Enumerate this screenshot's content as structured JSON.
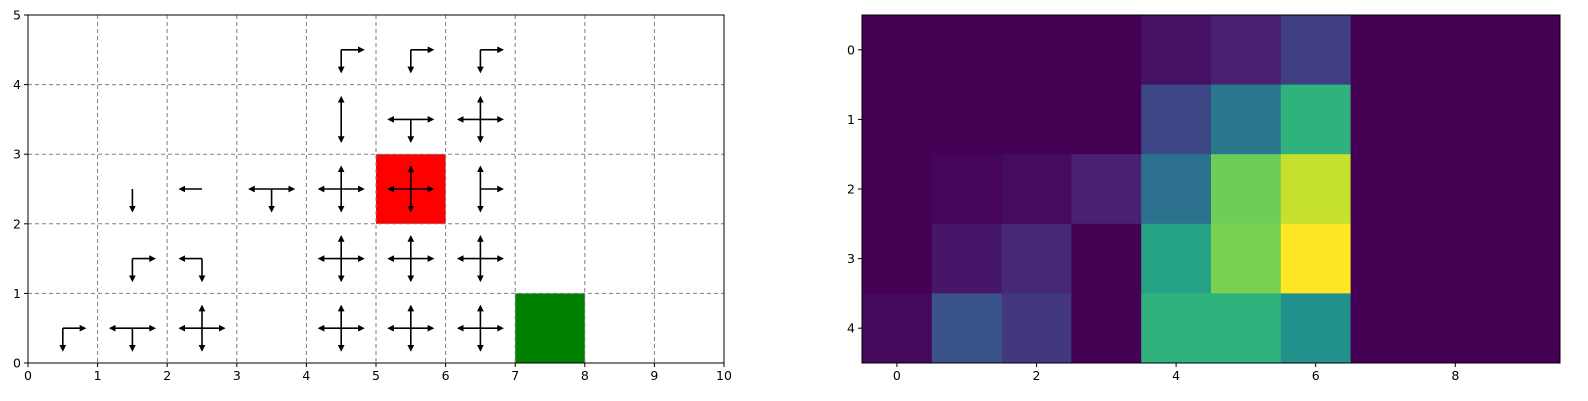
{
  "chart_data": [
    {
      "type": "quiver-grid",
      "xlim": [
        0,
        10
      ],
      "ylim": [
        0,
        5
      ],
      "x_ticks": [
        "0",
        "1",
        "2",
        "3",
        "4",
        "5",
        "6",
        "7",
        "8",
        "9",
        "10"
      ],
      "y_ticks": [
        "0",
        "1",
        "2",
        "3",
        "4",
        "5"
      ],
      "grid": "dashed",
      "grid_color": "#808080",
      "cells": [
        {
          "col": 5,
          "row": 2,
          "color": "#ff0000"
        },
        {
          "col": 7,
          "row": 0,
          "color": "#008000"
        }
      ],
      "arrow_color": "#000000",
      "arrows": [
        {
          "x": 0.5,
          "y": 0.5,
          "dirs": [
            "E",
            "S"
          ]
        },
        {
          "x": 1.5,
          "y": 0.5,
          "dirs": [
            "E",
            "W",
            "S"
          ]
        },
        {
          "x": 2.5,
          "y": 0.5,
          "dirs": [
            "N",
            "E",
            "W",
            "S"
          ]
        },
        {
          "x": 4.5,
          "y": 0.5,
          "dirs": [
            "N",
            "E",
            "W",
            "S"
          ]
        },
        {
          "x": 5.5,
          "y": 0.5,
          "dirs": [
            "N",
            "E",
            "W",
            "S"
          ]
        },
        {
          "x": 6.5,
          "y": 0.5,
          "dirs": [
            "N",
            "E",
            "W",
            "S"
          ]
        },
        {
          "x": 1.5,
          "y": 1.5,
          "dirs": [
            "E",
            "S"
          ]
        },
        {
          "x": 2.5,
          "y": 1.5,
          "dirs": [
            "W",
            "S"
          ]
        },
        {
          "x": 4.5,
          "y": 1.5,
          "dirs": [
            "N",
            "E",
            "W",
            "S"
          ]
        },
        {
          "x": 5.5,
          "y": 1.5,
          "dirs": [
            "N",
            "E",
            "W",
            "S"
          ]
        },
        {
          "x": 6.5,
          "y": 1.5,
          "dirs": [
            "N",
            "E",
            "W",
            "S"
          ]
        },
        {
          "x": 1.5,
          "y": 2.5,
          "dirs": [
            "S"
          ]
        },
        {
          "x": 2.5,
          "y": 2.5,
          "dirs": [
            "W"
          ]
        },
        {
          "x": 3.5,
          "y": 2.5,
          "dirs": [
            "E",
            "W",
            "S"
          ]
        },
        {
          "x": 4.5,
          "y": 2.5,
          "dirs": [
            "N",
            "E",
            "W",
            "S"
          ]
        },
        {
          "x": 5.5,
          "y": 2.5,
          "dirs": [
            "N",
            "E",
            "W",
            "S"
          ]
        },
        {
          "x": 6.5,
          "y": 2.5,
          "dirs": [
            "N",
            "E",
            "S"
          ]
        },
        {
          "x": 4.5,
          "y": 3.5,
          "dirs": [
            "N",
            "S"
          ]
        },
        {
          "x": 5.5,
          "y": 3.5,
          "dirs": [
            "E",
            "W",
            "S"
          ]
        },
        {
          "x": 6.5,
          "y": 3.5,
          "dirs": [
            "N",
            "E",
            "W",
            "S"
          ]
        },
        {
          "x": 4.5,
          "y": 4.5,
          "dirs": [
            "E",
            "S"
          ]
        },
        {
          "x": 5.5,
          "y": 4.5,
          "dirs": [
            "E",
            "S"
          ]
        },
        {
          "x": 6.5,
          "y": 4.5,
          "dirs": [
            "E",
            "S"
          ]
        }
      ]
    },
    {
      "type": "heatmap",
      "colormap": "viridis",
      "rows": 5,
      "cols": 10,
      "x_ticks": [
        "0",
        "2",
        "4",
        "6",
        "8"
      ],
      "x_tick_values": [
        0,
        2,
        4,
        6,
        8
      ],
      "y_ticks": [
        "0",
        "1",
        "2",
        "3",
        "4"
      ],
      "y_tick_values": [
        0,
        1,
        2,
        3,
        4
      ],
      "values": [
        [
          0.0,
          0.0,
          0.0,
          0.0,
          0.06,
          0.12,
          0.2,
          0.0,
          0.0,
          0.0
        ],
        [
          0.0,
          0.0,
          0.0,
          0.0,
          0.22,
          0.4,
          0.65,
          0.0,
          0.0,
          0.0
        ],
        [
          0.0,
          0.02,
          0.04,
          0.12,
          0.38,
          0.78,
          0.92,
          0.0,
          0.0,
          0.0
        ],
        [
          0.0,
          0.08,
          0.14,
          0.0,
          0.58,
          0.8,
          1.0,
          0.0,
          0.0,
          0.0
        ],
        [
          0.03,
          0.26,
          0.18,
          0.0,
          0.65,
          0.65,
          0.5,
          0.0,
          0.0,
          0.0
        ]
      ]
    }
  ]
}
